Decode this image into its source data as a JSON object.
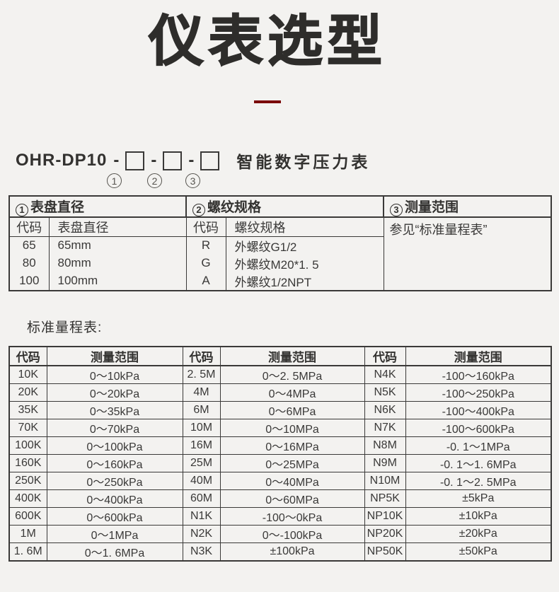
{
  "colors": {
    "background": "#f3f2f0",
    "text": "#3a3938",
    "border": "#3a3938",
    "accent_line": "#7a0407"
  },
  "header": {
    "title": "仪表选型"
  },
  "model": {
    "prefix": "OHR-DP10",
    "dash": "-",
    "name": "智能数字压力表",
    "position_markers": [
      "1",
      "2",
      "3"
    ]
  },
  "selection_table": {
    "sections": [
      {
        "marker": "1",
        "header": "表盘直径",
        "col_headers": [
          "代码",
          "表盘直径"
        ],
        "rows": [
          [
            "65",
            "65mm"
          ],
          [
            "80",
            "80mm"
          ],
          [
            "100",
            "100mm"
          ]
        ]
      },
      {
        "marker": "2",
        "header": "螺纹规格",
        "col_headers": [
          "代码",
          "螺纹规格"
        ],
        "rows": [
          [
            "R",
            "外螺纹G1/2"
          ],
          [
            "G",
            "外螺纹M20*1. 5"
          ],
          [
            "A",
            "外螺纹1/2NPT"
          ]
        ]
      },
      {
        "marker": "3",
        "header": "测量范围",
        "note": "参见“标准量程表”"
      }
    ]
  },
  "range_table": {
    "caption": "标准量程表:",
    "col_headers": [
      "代码",
      "测量范围"
    ],
    "groups": [
      {
        "rows": [
          [
            "10K",
            "0～10kPa"
          ],
          [
            "20K",
            "0～20kPa"
          ],
          [
            "35K",
            "0～35kPa"
          ],
          [
            "70K",
            "0～70kPa"
          ],
          [
            "100K",
            "0～100kPa"
          ],
          [
            "160K",
            "0～160kPa"
          ],
          [
            "250K",
            "0～250kPa"
          ],
          [
            "400K",
            "0～400kPa"
          ],
          [
            "600K",
            "0～600kPa"
          ],
          [
            "1M",
            "0～1MPa"
          ],
          [
            "1. 6M",
            "0～1. 6MPa"
          ]
        ]
      },
      {
        "rows": [
          [
            "2. 5M",
            "0～2. 5MPa"
          ],
          [
            "4M",
            "0～4MPa"
          ],
          [
            "6M",
            "0～6MPa"
          ],
          [
            "10M",
            "0～10MPa"
          ],
          [
            "16M",
            "0～16MPa"
          ],
          [
            "25M",
            "0～25MPa"
          ],
          [
            "40M",
            "0～40MPa"
          ],
          [
            "60M",
            "0～60MPa"
          ],
          [
            "N1K",
            "-100～0kPa"
          ],
          [
            "N2K",
            "0～-100kPa"
          ],
          [
            "N3K",
            "±100kPa"
          ]
        ]
      },
      {
        "rows": [
          [
            "N4K",
            "-100～160kPa"
          ],
          [
            "N5K",
            "-100～250kPa"
          ],
          [
            "N6K",
            "-100～400kPa"
          ],
          [
            "N7K",
            "-100～600kPa"
          ],
          [
            "N8M",
            "-0. 1～1MPa"
          ],
          [
            "N9M",
            "-0. 1～1. 6MPa"
          ],
          [
            "N10M",
            "-0. 1～2. 5MPa"
          ],
          [
            "NP5K",
            "±5kPa"
          ],
          [
            "NP10K",
            "±10kPa"
          ],
          [
            "NP20K",
            "±20kPa"
          ],
          [
            "NP50K",
            "±50kPa"
          ]
        ]
      }
    ]
  }
}
